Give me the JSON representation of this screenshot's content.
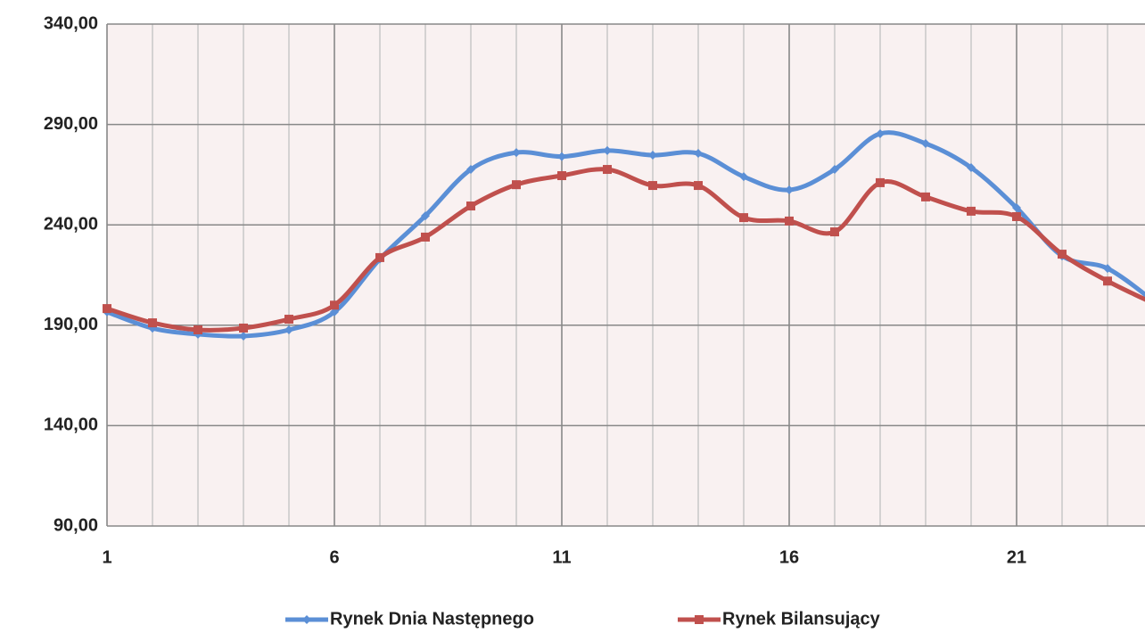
{
  "chart_data": {
    "type": "line",
    "x": [
      1,
      2,
      3,
      4,
      5,
      6,
      7,
      8,
      9,
      10,
      11,
      12,
      13,
      14,
      15,
      16,
      17,
      18,
      19,
      20,
      21,
      22,
      23,
      24
    ],
    "series": [
      {
        "name": "Rynek Dnia Następnego",
        "color": "#5b8fd6",
        "marker": "diamond",
        "values": [
          196.6,
          188.5,
          185.5,
          184.6,
          187.7,
          196.6,
          223,
          244.5,
          267.6,
          276,
          274,
          277,
          274.7,
          275.6,
          264,
          257.4,
          267.6,
          285.4,
          280.5,
          268.5,
          248.5,
          224.5,
          218.3,
          202.3
        ]
      },
      {
        "name": "Rynek Bilansujący",
        "color": "#c0504d",
        "marker": "square",
        "values": [
          198.3,
          191.2,
          187.7,
          188.6,
          193,
          200,
          223.7,
          233.9,
          249.4,
          260,
          264.5,
          267.6,
          259.6,
          259.6,
          243.6,
          241.9,
          236.5,
          261,
          253.9,
          246.8,
          244.1,
          225.4,
          212,
          201
        ]
      }
    ],
    "xlim": [
      1,
      24
    ],
    "xticks": [
      1,
      6,
      11,
      16,
      21
    ],
    "ylim": [
      90,
      340
    ],
    "yticks": [
      {
        "value": 90,
        "label": "90,00"
      },
      {
        "value": 140,
        "label": "140,00"
      },
      {
        "value": 190,
        "label": "190,00"
      },
      {
        "value": 240,
        "label": "240,00"
      },
      {
        "value": 290,
        "label": "290,00"
      },
      {
        "value": 340,
        "label": "340,00"
      }
    ],
    "grid": true,
    "smooth": true,
    "legend": "bottom"
  }
}
